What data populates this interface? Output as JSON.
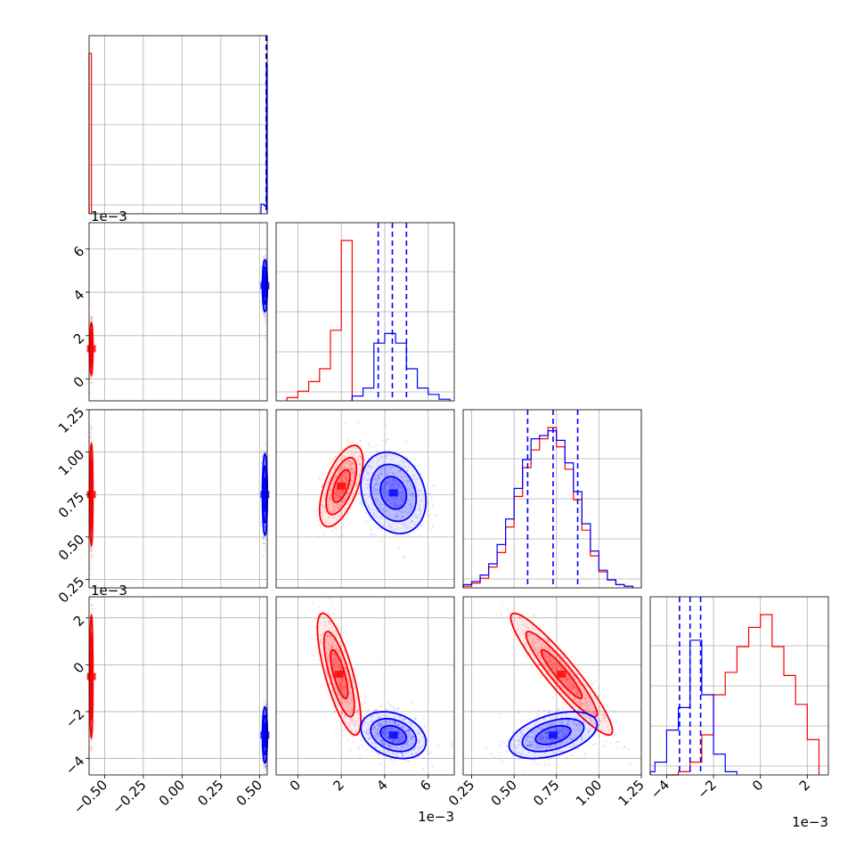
{
  "chart_data": {
    "type": "corner",
    "colors": {
      "red": "#ff0000",
      "blue": "#0000ff",
      "grid": "#b0b0b0"
    },
    "offset_labels": {
      "scale": "1e−3"
    },
    "parameters": [
      {
        "range": [
          -0.6,
          0.55
        ],
        "ticks": [
          -0.5,
          -0.25,
          0.0,
          0.25,
          0.5
        ],
        "tick_labels": [
          "−0.50",
          "−0.25",
          "0.00",
          "0.25",
          "0.50"
        ]
      },
      {
        "range": [
          -1.0,
          7.2
        ],
        "ticks": [
          0,
          2,
          4,
          6
        ],
        "tick_labels": [
          "0",
          "2",
          "4",
          "6"
        ]
      },
      {
        "range": [
          0.2,
          1.25
        ],
        "ticks": [
          0.25,
          0.5,
          0.75,
          1.0,
          1.25
        ],
        "tick_labels": [
          "0.25",
          "0.50",
          "0.75",
          "1.00",
          "1.25"
        ]
      },
      {
        "range": [
          -4.7,
          2.9
        ],
        "ticks": [
          -4,
          -2,
          0,
          2
        ],
        "tick_labels": [
          "−4",
          "−2",
          "0",
          "2"
        ]
      }
    ],
    "histograms": [
      {
        "red": {
          "edges": [
            -0.6,
            -0.585
          ],
          "counts": [
            1.0
          ]
        },
        "blue": {
          "edges": [
            0.51,
            0.53,
            0.545,
            0.55
          ],
          "counts": [
            0.06,
            0.05,
            0.93
          ]
        },
        "blue_quantiles": [
          0.543,
          0.545,
          0.547
        ]
      },
      {
        "red": {
          "edges": [
            -0.5,
            0.0,
            0.5,
            1.0,
            1.5,
            2.0,
            2.5
          ],
          "counts": [
            0.02,
            0.06,
            0.12,
            0.2,
            0.44,
            1.0
          ]
        },
        "blue": {
          "edges": [
            2.5,
            3.0,
            3.5,
            4.0,
            4.5,
            5.0,
            5.5,
            6.0,
            6.5,
            7.0
          ],
          "counts": [
            0.03,
            0.08,
            0.36,
            0.42,
            0.36,
            0.2,
            0.08,
            0.04,
            0.01
          ]
        },
        "blue_quantiles": [
          3.7,
          4.35,
          5.0
        ]
      },
      {
        "red": {
          "edges": [
            0.2,
            0.25,
            0.3,
            0.35,
            0.4,
            0.45,
            0.5,
            0.55,
            0.6,
            0.65,
            0.7,
            0.75,
            0.8,
            0.85,
            0.9,
            0.95,
            1.0,
            1.05,
            1.1,
            1.15,
            1.2
          ],
          "counts": [
            0.01,
            0.03,
            0.06,
            0.13,
            0.22,
            0.38,
            0.57,
            0.75,
            0.86,
            0.93,
            1.0,
            0.88,
            0.74,
            0.55,
            0.36,
            0.2,
            0.1,
            0.05,
            0.02,
            0.01
          ]
        },
        "blue": {
          "edges": [
            0.2,
            0.25,
            0.3,
            0.35,
            0.4,
            0.45,
            0.5,
            0.55,
            0.6,
            0.65,
            0.7,
            0.75,
            0.8,
            0.85,
            0.9,
            0.95,
            1.0,
            1.05,
            1.1,
            1.15,
            1.2
          ],
          "counts": [
            0.02,
            0.04,
            0.08,
            0.15,
            0.27,
            0.43,
            0.62,
            0.8,
            0.93,
            0.95,
            0.98,
            0.92,
            0.78,
            0.6,
            0.4,
            0.23,
            0.11,
            0.05,
            0.02,
            0.01
          ]
        },
        "blue_quantiles": [
          0.58,
          0.73,
          0.875
        ]
      },
      {
        "red": {
          "edges": [
            -4.0,
            -3.5,
            -3.0,
            -2.5,
            -2.0,
            -1.5,
            -1.0,
            -0.5,
            0.0,
            0.5,
            1.0,
            1.5,
            2.0,
            2.5
          ],
          "counts": [
            0.0,
            0.02,
            0.08,
            0.25,
            0.5,
            0.64,
            0.8,
            0.92,
            1.0,
            0.8,
            0.62,
            0.44,
            0.22
          ]
        },
        "blue": {
          "edges": [
            -4.7,
            -4.5,
            -4.0,
            -3.5,
            -3.0,
            -2.5,
            -2.0,
            -1.5,
            -1.0
          ],
          "counts": [
            0.02,
            0.08,
            0.28,
            0.42,
            0.84,
            0.5,
            0.13,
            0.02
          ]
        },
        "blue_quantiles": [
          -3.45,
          -3.0,
          -2.55
        ]
      }
    ],
    "pairs": [
      {
        "row": 1,
        "col": 0,
        "red": {
          "cx": -0.585,
          "cy": 1.4,
          "sx": 0.005,
          "sy": 0.6,
          "rho": 0.0
        },
        "blue": {
          "cx": 0.535,
          "cy": 4.3,
          "sx": 0.008,
          "sy": 0.6,
          "rho": 0.0
        }
      },
      {
        "row": 2,
        "col": 0,
        "red": {
          "cx": -0.585,
          "cy": 0.75,
          "sx": 0.005,
          "sy": 0.15,
          "rho": 0.0
        },
        "blue": {
          "cx": 0.535,
          "cy": 0.75,
          "sx": 0.008,
          "sy": 0.12,
          "rho": 0.0
        }
      },
      {
        "row": 2,
        "col": 1,
        "red": {
          "cx": 2.0,
          "cy": 0.8,
          "sx": 0.5,
          "sy": 0.12,
          "rho": 0.6
        },
        "blue": {
          "cx": 4.4,
          "cy": 0.76,
          "sx": 0.75,
          "sy": 0.12,
          "rho": -0.2
        }
      },
      {
        "row": 3,
        "col": 0,
        "red": {
          "cx": -0.585,
          "cy": -0.5,
          "sx": 0.005,
          "sy": 1.3,
          "rho": 0.0
        },
        "blue": {
          "cx": 0.535,
          "cy": -3.0,
          "sx": 0.008,
          "sy": 0.6,
          "rho": 0.0
        }
      },
      {
        "row": 3,
        "col": 1,
        "red": {
          "cx": 1.9,
          "cy": -0.4,
          "sx": 0.5,
          "sy": 1.3,
          "rho": -0.75
        },
        "blue": {
          "cx": 4.4,
          "cy": -3.0,
          "sx": 0.75,
          "sy": 0.5,
          "rho": -0.3
        }
      },
      {
        "row": 3,
        "col": 2,
        "red": {
          "cx": 0.78,
          "cy": -0.4,
          "sx": 0.15,
          "sy": 1.3,
          "rho": -0.93
        },
        "blue": {
          "cx": 0.73,
          "cy": -3.0,
          "sx": 0.13,
          "sy": 0.5,
          "rho": 0.45
        }
      }
    ]
  }
}
